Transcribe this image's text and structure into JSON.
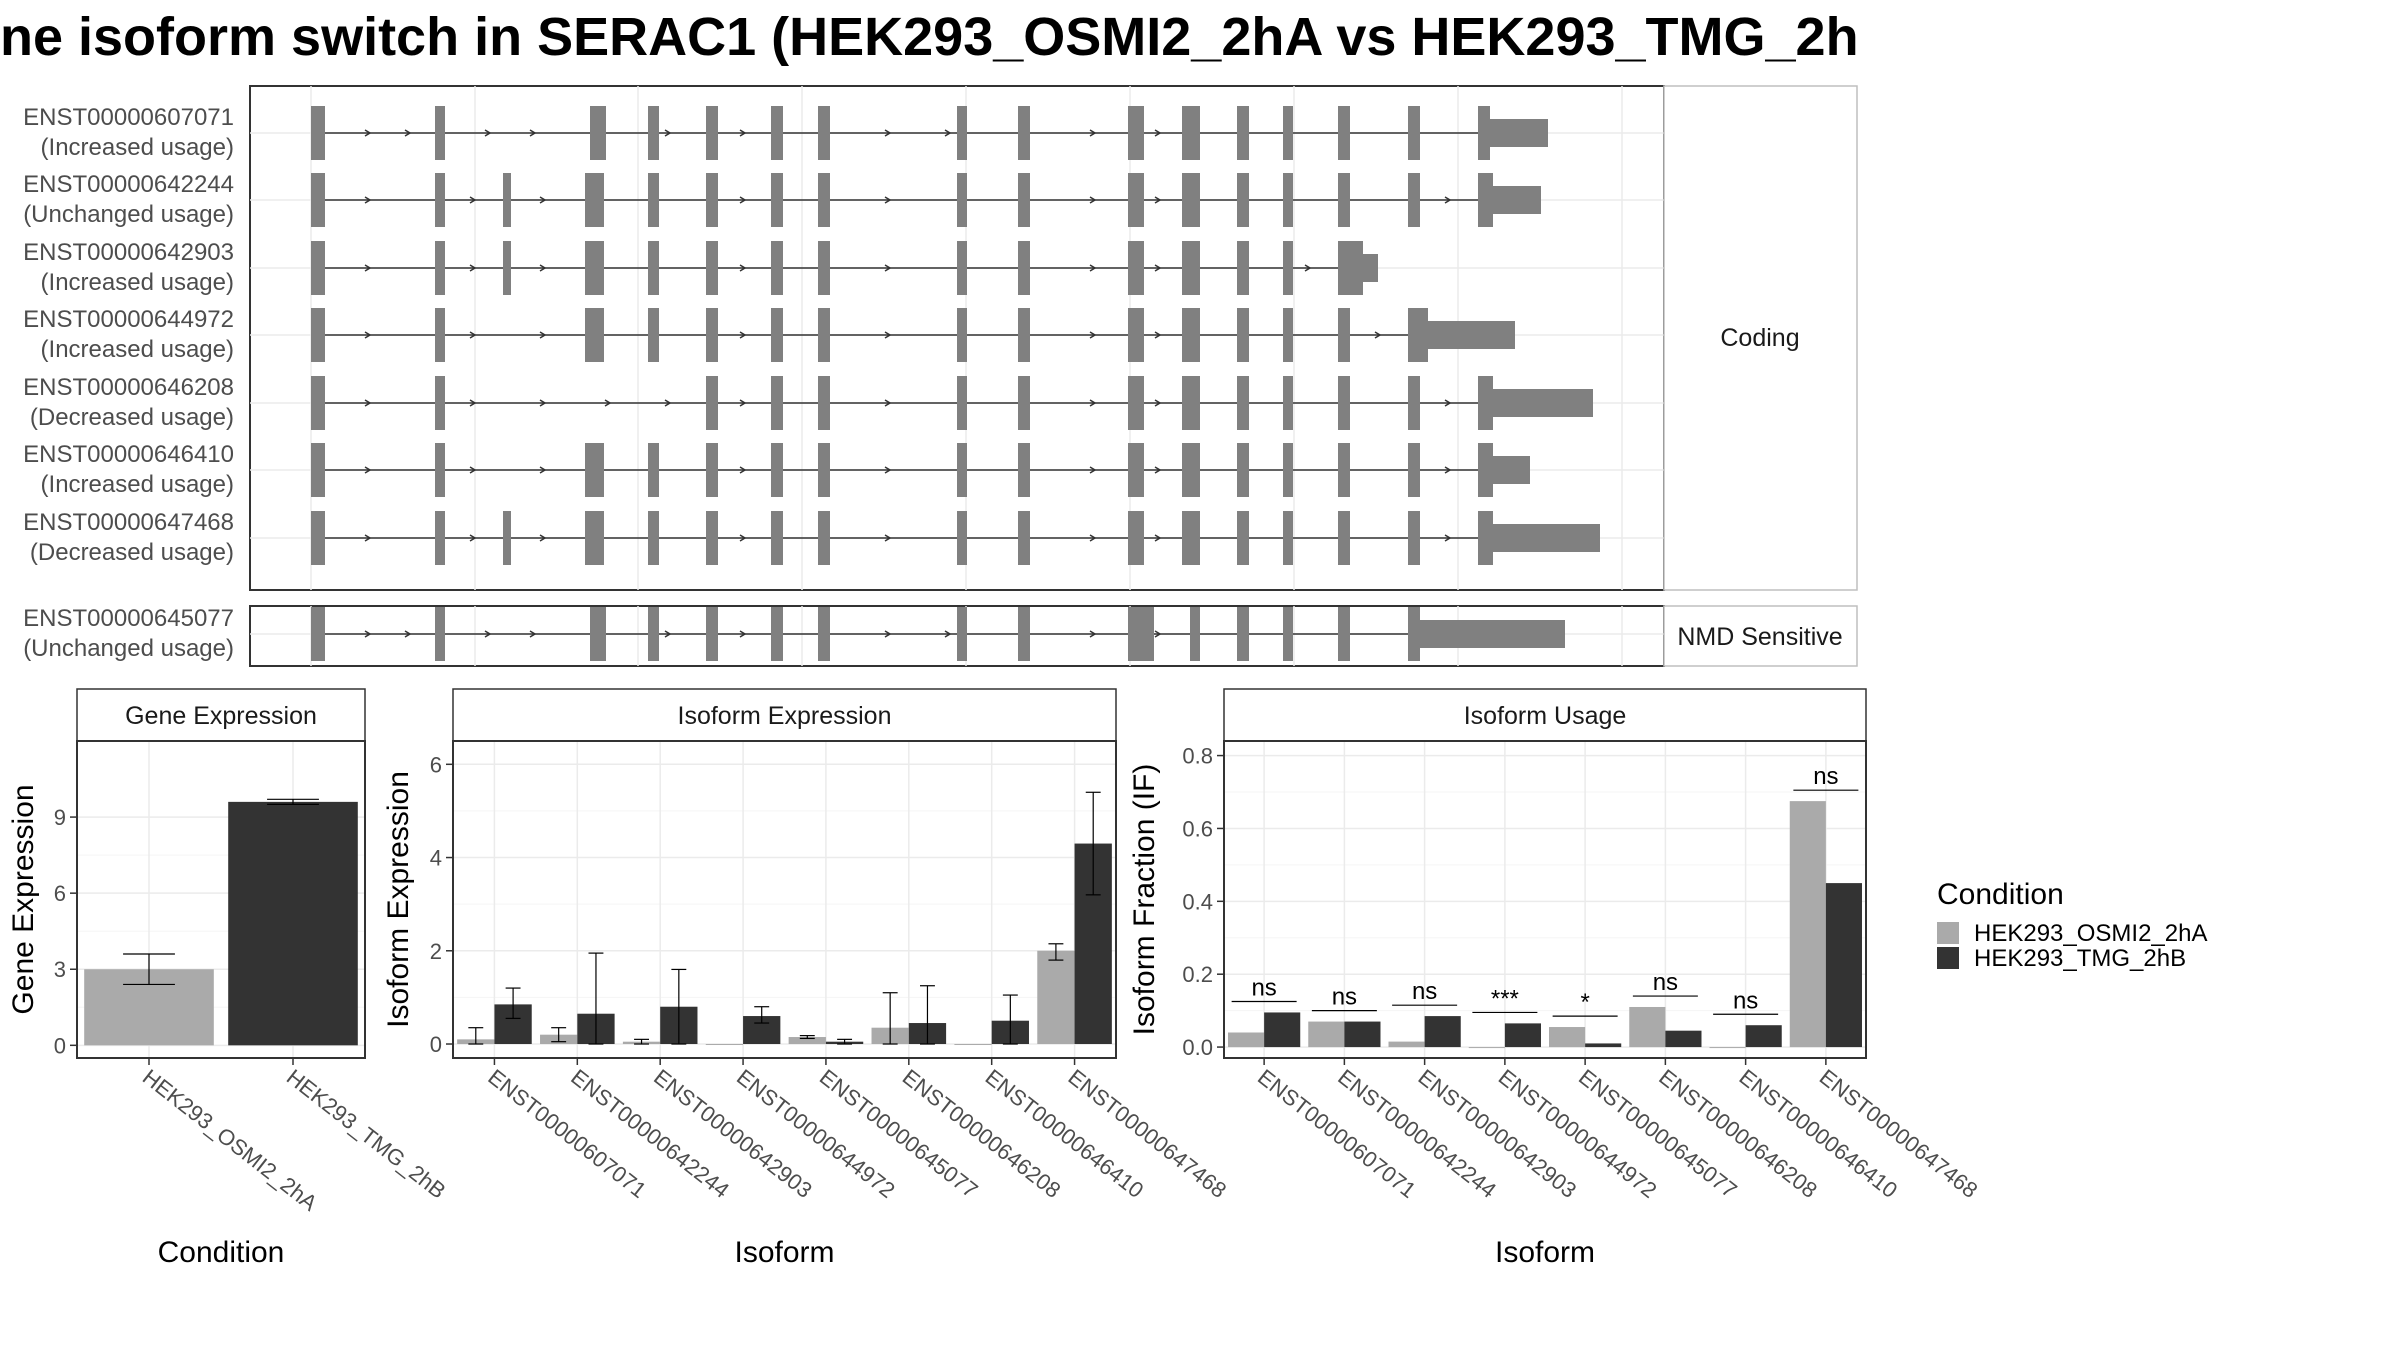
{
  "title": "ne isoform switch in SERAC1 (HEK293_OSMI2_2hA vs HEK293_TMG_2h",
  "colors": {
    "exon": "#808080",
    "osmi": "#aaaaaa",
    "tmg": "#333333",
    "panel_border": "#333333",
    "strip_bg": "#ffffff",
    "grid": "#ebebeb"
  },
  "transcripts": {
    "groups": [
      {
        "label": "Coding",
        "isoforms": [
          {
            "id": "ENST00000607071",
            "usage": "(Increased usage)"
          },
          {
            "id": "ENST00000642244",
            "usage": "(Unchanged usage)"
          },
          {
            "id": "ENST00000642903",
            "usage": "(Increased usage)"
          },
          {
            "id": "ENST00000644972",
            "usage": "(Increased usage)"
          },
          {
            "id": "ENST00000646208",
            "usage": "(Decreased usage)"
          },
          {
            "id": "ENST00000646410",
            "usage": "(Increased usage)"
          },
          {
            "id": "ENST00000647468",
            "usage": "(Decreased usage)"
          }
        ]
      },
      {
        "label": "NMD Sensitive",
        "isoforms": [
          {
            "id": "ENST00000645077",
            "usage": "(Unchanged usage)"
          }
        ]
      }
    ]
  },
  "chart_data": [
    {
      "type": "bar",
      "title": "Gene Expression",
      "xlabel": "Condition",
      "ylabel": "Gene Expression",
      "categories": [
        "HEK293_OSMI2_2hA",
        "HEK293_TMG_2hB"
      ],
      "values": [
        3.0,
        9.6
      ],
      "error_low": [
        2.4,
        9.5
      ],
      "error_high": [
        3.6,
        9.7
      ],
      "yticks": [
        0,
        3,
        6,
        9
      ],
      "ylim": [
        -0.5,
        12
      ]
    },
    {
      "type": "bar",
      "title": "Isoform Expression",
      "xlabel": "Isoform",
      "ylabel": "Isoform Expression",
      "categories": [
        "ENST00000607071",
        "ENST00000642244",
        "ENST00000642903",
        "ENST00000644972",
        "ENST00000645077",
        "ENST00000646208",
        "ENST00000646410",
        "ENST00000647468"
      ],
      "series": [
        {
          "name": "HEK293_OSMI2_2hA",
          "values": [
            0.1,
            0.2,
            0.05,
            0.0,
            0.15,
            0.35,
            0.0,
            2.0
          ],
          "error_low": [
            0.0,
            0.05,
            0.0,
            0.0,
            0.12,
            0.0,
            0.0,
            1.8
          ],
          "error_high": [
            0.35,
            0.35,
            0.1,
            0.0,
            0.18,
            1.1,
            0.0,
            2.15
          ]
        },
        {
          "name": "HEK293_TMG_2hB",
          "values": [
            0.85,
            0.65,
            0.8,
            0.6,
            0.05,
            0.45,
            0.5,
            4.3
          ],
          "error_low": [
            0.55,
            0.0,
            0.0,
            0.45,
            0.0,
            0.0,
            0.0,
            3.2
          ],
          "error_high": [
            1.2,
            1.95,
            1.6,
            0.8,
            0.1,
            1.25,
            1.05,
            5.4
          ]
        }
      ],
      "yticks": [
        0,
        2,
        4,
        6
      ],
      "ylim": [
        -0.3,
        6.5
      ]
    },
    {
      "type": "bar",
      "title": "Isoform Usage",
      "xlabel": "Isoform",
      "ylabel": "Isoform Fraction (IF)",
      "categories": [
        "ENST00000607071",
        "ENST00000642244",
        "ENST00000642903",
        "ENST00000644972",
        "ENST00000645077",
        "ENST00000646208",
        "ENST00000646410",
        "ENST00000647468"
      ],
      "series": [
        {
          "name": "HEK293_OSMI2_2hA",
          "values": [
            0.04,
            0.07,
            0.015,
            0.0,
            0.055,
            0.11,
            0.0,
            0.675
          ]
        },
        {
          "name": "HEK293_TMG_2hB",
          "values": [
            0.095,
            0.07,
            0.085,
            0.065,
            0.01,
            0.045,
            0.06,
            0.45
          ]
        }
      ],
      "significance": [
        "ns",
        "ns",
        "ns",
        "***",
        "*",
        "ns",
        "ns",
        "ns"
      ],
      "yticks": [
        0.0,
        0.2,
        0.4,
        0.6,
        0.8
      ],
      "ylim": [
        -0.03,
        0.84
      ]
    }
  ],
  "legend": {
    "title": "Condition",
    "items": [
      "HEK293_OSMI2_2hA",
      "HEK293_TMG_2hB"
    ]
  }
}
